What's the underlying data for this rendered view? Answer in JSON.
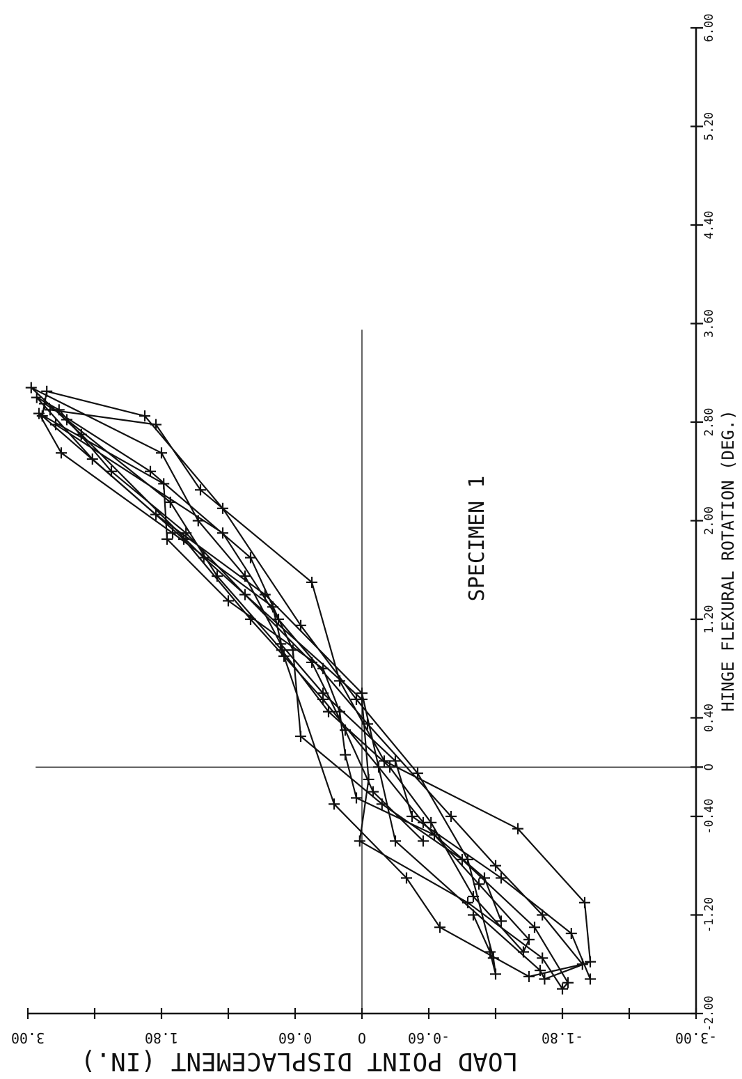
{
  "chart_data": {
    "type": "line",
    "title": "SPECIMEN 1",
    "xlabel": "HINGE FLEXURAL ROTATION (DEG.)",
    "ylabel": "LOAD POINT DISPLACEMENT (IN.)",
    "xlim": [
      -2.0,
      6.0
    ],
    "ylim": [
      -3.0,
      3.0
    ],
    "x_ticks": [
      "-2.00",
      "-1.20",
      "-0.40",
      "O",
      "0.40",
      "1.20",
      "2.00",
      "2.80",
      "3.60",
      "4.40",
      "5.20",
      "6.00"
    ],
    "x_tick_values": [
      -2.0,
      -1.2,
      -0.4,
      0.0,
      0.4,
      1.2,
      2.0,
      2.8,
      3.6,
      4.4,
      5.2,
      6.0
    ],
    "y_ticks": [
      "-3.00",
      "-1.80",
      "-0.60",
      "O",
      "0.60",
      "1.80",
      "3.00"
    ],
    "y_tick_values": [
      -3.0,
      -1.8,
      -0.6,
      0.0,
      0.6,
      1.8,
      3.0
    ],
    "grid": false,
    "zero_lines": true,
    "marker": "+",
    "series": [
      {
        "x": [
          -1.2,
          -1.5,
          -1.68,
          -1.55,
          -0.75,
          -0.05,
          0.55,
          1.15,
          2.1,
          2.85,
          3.05,
          2.85,
          2.05,
          1.4,
          0.6,
          -0.6,
          -1.65,
          -1.72,
          -1.58,
          -1.1,
          -0.5,
          0.05,
          0.7,
          1.5,
          2.25,
          2.78,
          2.9
        ],
        "y": [
          -1.0,
          -1.15,
          -1.2,
          -1.18,
          -0.95,
          -0.5,
          0.05,
          0.55,
          1.25,
          1.95,
          2.83,
          2.87,
          1.85,
          0.87,
          0.0,
          -0.3,
          -1.6,
          -1.64,
          -2.05,
          -2.0,
          -1.4,
          -0.2,
          0.2,
          0.45,
          1.45,
          1.85,
          2.8
        ]
      },
      {
        "x": [
          -1.72,
          -1.35,
          -0.9,
          -0.4,
          0.05,
          0.6,
          1.0,
          1.55,
          2.0,
          2.55,
          3.08,
          2.7,
          1.7,
          0.55,
          -0.1,
          -0.6,
          -1.1,
          -1.55,
          -1.8,
          -1.75,
          -1.3,
          -0.75,
          -0.3,
          0.25,
          0.95,
          1.7,
          2.4,
          2.95
        ],
        "y": [
          -2.05,
          -1.88,
          -1.25,
          -0.45,
          -0.3,
          0.35,
          0.73,
          1.05,
          1.47,
          1.8,
          2.97,
          2.52,
          1.42,
          0.0,
          -0.06,
          0.02,
          -0.95,
          -1.62,
          -1.8,
          -1.85,
          -1.55,
          -0.9,
          -0.18,
          0.55,
          0.62,
          1.0,
          1.9,
          2.85
        ]
      },
      {
        "x": [
          -1.25,
          -0.9,
          -0.55,
          -0.25,
          0.1,
          0.45,
          0.8,
          1.35,
          1.85,
          2.3,
          2.87,
          2.55,
          1.9,
          1.3,
          0.9,
          -0.3,
          -0.9,
          -1.3,
          -1.7,
          -1.6,
          -1.2,
          -0.8,
          -0.4,
          0.35,
          1.2,
          1.9,
          2.78
        ],
        "y": [
          -1.25,
          -1.1,
          -0.65,
          0.05,
          0.15,
          0.2,
          0.35,
          1.2,
          1.75,
          1.78,
          2.9,
          2.7,
          1.7,
          0.8,
          0.7,
          0.25,
          -0.4,
          -0.7,
          -1.5,
          -1.98,
          -1.62,
          -1.2,
          -0.8,
          -0.05,
          0.75,
          1.25,
          2.75
        ]
      },
      {
        "x": [
          -0.6,
          -0.2,
          0.3,
          0.85,
          1.4,
          1.9,
          2.4,
          2.9,
          3.0,
          2.5,
          1.85,
          1.2,
          0.55,
          0.0,
          -0.45,
          -0.95,
          -1.4,
          -1.5,
          -1.05,
          -0.45,
          0.0,
          0.45,
          0.95,
          1.55,
          2.15,
          2.82
        ],
        "y": [
          -0.55,
          -0.1,
          0.15,
          0.45,
          1.05,
          1.58,
          2.25,
          2.72,
          2.92,
          2.42,
          1.6,
          1.0,
          0.35,
          -0.15,
          -0.55,
          -1.05,
          -1.5,
          -1.45,
          -1.0,
          -0.62,
          -0.25,
          0.3,
          0.72,
          1.3,
          1.72,
          2.65
        ]
      }
    ]
  }
}
